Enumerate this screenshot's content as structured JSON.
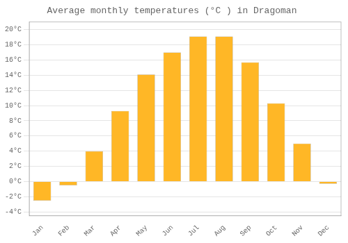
{
  "chart_data": {
    "type": "bar",
    "title": "Average monthly temperatures (°C ) in Dragoman",
    "categories": [
      "Jan",
      "Feb",
      "Mar",
      "Apr",
      "May",
      "Jun",
      "Jul",
      "Aug",
      "Sep",
      "Oct",
      "Nov",
      "Dec"
    ],
    "values": [
      -2.5,
      -0.5,
      4.0,
      9.3,
      14.1,
      17.0,
      19.1,
      19.1,
      15.7,
      10.3,
      5.0,
      -0.3
    ],
    "color": "#FFB726",
    "ylim": [
      -4.5,
      21
    ],
    "yticks": [
      {
        "value": -4,
        "label": "-4°C"
      },
      {
        "value": -2,
        "label": "-2°C"
      },
      {
        "value": 0,
        "label": "0°C"
      },
      {
        "value": 2,
        "label": "2°C"
      },
      {
        "value": 4,
        "label": "4°C"
      },
      {
        "value": 6,
        "label": "6°C"
      },
      {
        "value": 8,
        "label": "8°C"
      },
      {
        "value": 10,
        "label": "10°C"
      },
      {
        "value": 12,
        "label": "12°C"
      },
      {
        "value": 14,
        "label": "14°C"
      },
      {
        "value": 16,
        "label": "16°C"
      },
      {
        "value": 18,
        "label": "18°C"
      },
      {
        "value": 20,
        "label": "20°C"
      }
    ],
    "grid": true
  }
}
